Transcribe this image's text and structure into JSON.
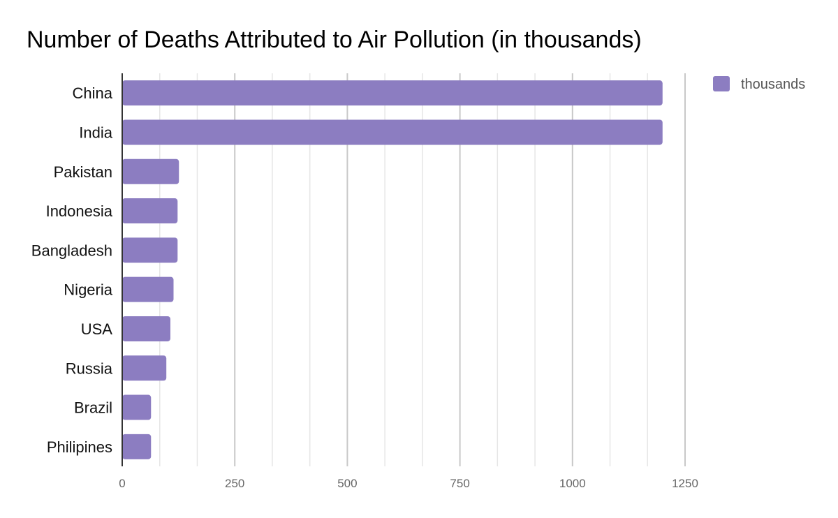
{
  "chart_data": {
    "type": "bar",
    "orientation": "horizontal",
    "title": "Number of Deaths Attributed to Air Pollution (in thousands)",
    "xlabel": "",
    "ylabel": "",
    "categories": [
      "China",
      "India",
      "Pakistan",
      "Indonesia",
      "Bangladesh",
      "Nigeria",
      "USA",
      "Russia",
      "Brazil",
      "Philipines"
    ],
    "series": [
      {
        "name": "thousands",
        "values": [
          1200,
          1200,
          126,
          123,
          123,
          114,
          107,
          98,
          64,
          64
        ],
        "color": "#8c7dc1"
      }
    ],
    "xlim": [
      0,
      1250
    ],
    "xticks": [
      0,
      250,
      500,
      750,
      1000,
      1250
    ],
    "xtick_labels": [
      "0",
      "250",
      "500",
      "750",
      "1000",
      "1250"
    ],
    "grid": true,
    "legend": {
      "position": "top-right",
      "entries": [
        "thousands"
      ]
    }
  }
}
